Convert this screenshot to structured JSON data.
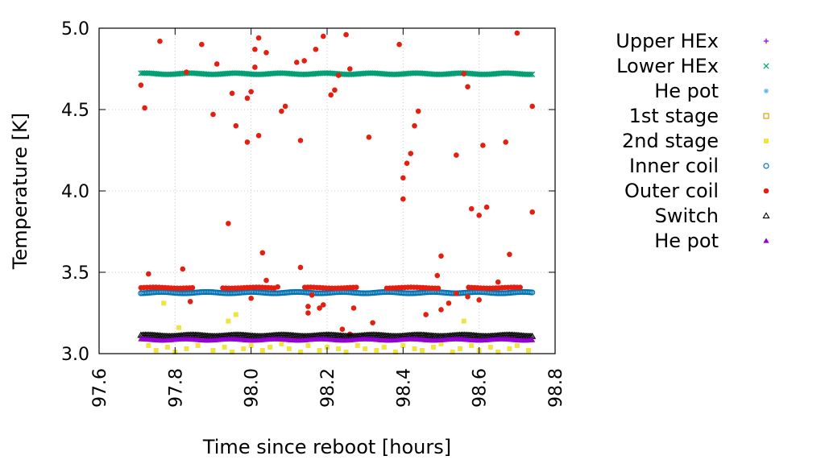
{
  "chart_data": {
    "type": "scatter",
    "title": "",
    "xlabel": "Time since reboot [hours]",
    "ylabel": "Temperature [K]",
    "xlim": [
      97.6,
      98.8
    ],
    "ylim": [
      3.0,
      5.0
    ],
    "x_ticks": [
      "97.6",
      "97.8",
      "98.0",
      "98.2",
      "98.4",
      "98.6",
      "98.8"
    ],
    "y_ticks": [
      "3.0",
      "3.5",
      "4.0",
      "4.5",
      "5.0"
    ],
    "grid": true,
    "legend_position": "outside-right",
    "series": [
      {
        "name": "Upper HEx",
        "marker": "plus",
        "color": "#9400d3",
        "x": [],
        "y": []
      },
      {
        "name": "Lower HEx",
        "marker": "cross",
        "color": "#009e73",
        "x_range": [
          97.71,
          98.74
        ],
        "level": 4.72,
        "count": 260
      },
      {
        "name": "He pot",
        "marker": "star",
        "color": "#56b4e9",
        "x": [],
        "y": []
      },
      {
        "name": "1st stage",
        "marker": "open-square",
        "color": "#e69f00",
        "x": [],
        "y": []
      },
      {
        "name": "2nd stage",
        "marker": "filled-square",
        "color": "#f0e442",
        "x": [
          97.73,
          97.75,
          97.78,
          97.8,
          97.83,
          97.86,
          97.9,
          97.93,
          97.95,
          97.98,
          98.0,
          98.03,
          98.05,
          98.08,
          98.1,
          98.13,
          98.15,
          98.18,
          98.2,
          98.23,
          98.25,
          98.28,
          98.3,
          98.33,
          98.35,
          98.38,
          98.4,
          98.43,
          98.45,
          98.48,
          98.5,
          98.53,
          98.55,
          98.58,
          98.6,
          98.63,
          98.65,
          98.68,
          98.7,
          98.73,
          97.77,
          97.81,
          97.94,
          97.96,
          98.56
        ],
        "y": [
          3.05,
          3.02,
          3.04,
          3.01,
          3.03,
          3.05,
          3.02,
          3.04,
          3.01,
          3.03,
          3.05,
          3.02,
          3.04,
          3.06,
          3.03,
          3.01,
          3.05,
          3.02,
          3.04,
          3.03,
          3.01,
          3.05,
          3.03,
          3.02,
          3.04,
          3.01,
          3.05,
          3.03,
          3.02,
          3.04,
          3.06,
          3.01,
          3.03,
          3.05,
          3.02,
          3.04,
          3.01,
          3.03,
          3.05,
          3.02,
          3.31,
          3.16,
          3.2,
          3.24,
          3.2
        ]
      },
      {
        "name": "Inner coil",
        "marker": "open-circle",
        "color": "#0072b2",
        "x_range": [
          97.71,
          98.74
        ],
        "level": 3.375,
        "count": 260
      },
      {
        "name": "Outer coil",
        "marker": "filled-circle",
        "color": "#e51e10",
        "x": [
          97.71,
          97.72,
          97.73,
          97.76,
          97.82,
          97.83,
          97.84,
          97.87,
          97.9,
          97.91,
          97.94,
          97.95,
          97.96,
          97.99,
          97.99,
          98.0,
          98.01,
          98.01,
          98.02,
          98.03,
          98.02,
          98.04,
          98.08,
          98.09,
          98.12,
          98.13,
          98.14,
          98.17,
          98.19,
          98.21,
          98.22,
          98.23,
          98.25,
          98.26,
          98.31,
          98.39,
          98.4,
          98.4,
          98.41,
          98.42,
          98.43,
          98.44,
          98.5,
          98.54,
          98.56,
          98.57,
          98.58,
          98.6,
          98.61,
          98.62,
          98.67,
          98.68,
          98.7,
          98.74,
          98.74,
          98.0,
          98.04,
          98.07,
          98.13,
          98.15,
          98.15,
          98.16,
          98.18,
          98.19,
          98.24,
          98.26,
          98.27,
          98.32,
          98.46,
          98.49,
          98.5,
          98.52,
          98.54,
          98.57,
          98.6,
          98.65
        ],
        "y": [
          4.65,
          4.51,
          3.49,
          4.92,
          3.52,
          4.73,
          3.32,
          4.9,
          4.47,
          4.78,
          3.8,
          4.6,
          4.4,
          4.3,
          4.57,
          4.61,
          4.76,
          4.87,
          4.34,
          3.62,
          4.94,
          4.85,
          4.49,
          4.52,
          4.79,
          4.31,
          4.8,
          4.87,
          4.95,
          4.59,
          4.62,
          4.71,
          4.96,
          4.75,
          4.33,
          4.9,
          4.08,
          3.95,
          4.17,
          4.23,
          4.4,
          4.49,
          3.6,
          4.22,
          4.72,
          4.64,
          3.89,
          3.85,
          4.28,
          3.9,
          4.3,
          3.61,
          4.97,
          4.52,
          3.87,
          3.34,
          3.45,
          3.41,
          3.53,
          3.29,
          3.25,
          3.36,
          3.28,
          3.3,
          3.15,
          3.12,
          3.28,
          3.19,
          3.24,
          3.48,
          3.27,
          3.31,
          3.37,
          3.35,
          3.33,
          3.44
        ],
        "band_level": 3.405,
        "band_count": 130
      },
      {
        "name": "Switch",
        "marker": "open-triangle",
        "color": "#000000",
        "x_range": [
          97.71,
          98.74
        ],
        "level": 3.11,
        "count": 260
      },
      {
        "name": "He pot",
        "marker": "filled-triangle",
        "color": "#9400d3",
        "x_range": [
          97.71,
          98.74
        ],
        "level": 3.085,
        "count": 260
      }
    ]
  }
}
